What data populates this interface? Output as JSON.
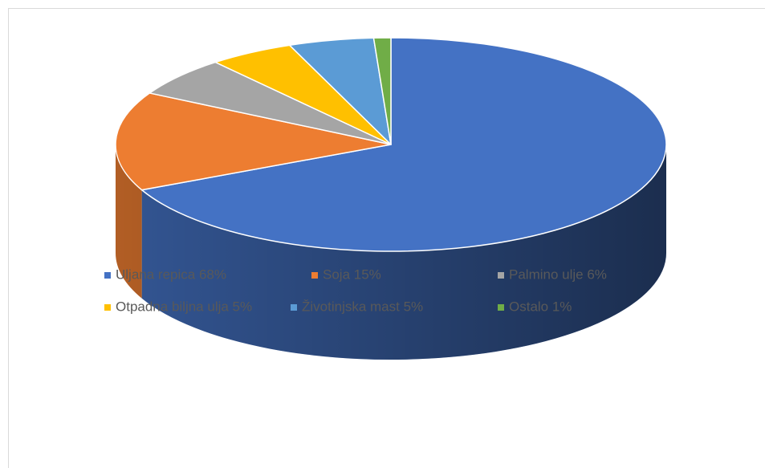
{
  "chart_data": {
    "type": "pie",
    "pie_style": "3d",
    "categories": [
      "Uljana repica 68%",
      "Soja 15%",
      "Palmino ulje 6%",
      "Otpadna biljna ulja 5%",
      "Životinjska mast 5%",
      "Ostalo 1%"
    ],
    "values": [
      68,
      15,
      6,
      5,
      5,
      1
    ],
    "colors": [
      "#4472c4",
      "#ed7d31",
      "#a5a5a5",
      "#ffc000",
      "#5b9bd5",
      "#70ad47"
    ],
    "legend": "bottom"
  }
}
